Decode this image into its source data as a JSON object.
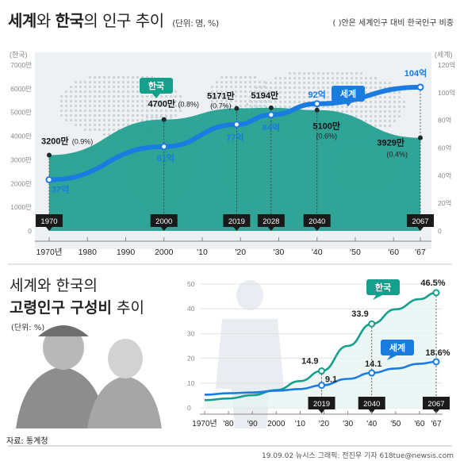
{
  "header": {
    "title_a": "세계",
    "title_b": "와 ",
    "title_c": "한국",
    "title_d": "의 인구 추이",
    "unit": "(단위: 명, %)",
    "note": "( )안은 세계인구 대비 한국인구 비중"
  },
  "bottom": {
    "title_line1": "세계와 한국의",
    "title_line2_bold": "고령인구 구성비",
    "title_line2_rest": " 추이",
    "unit": "(단위: %)"
  },
  "footer": {
    "source": "자료: 통계청",
    "credit": "19.09.02  뉴시스 그래픽: 전진우 기자  618tue@newsis.com"
  },
  "colors": {
    "world": "#1a7be0",
    "korea": "#14a08c",
    "korea_fill": "#1f9e8e",
    "map": "#cdd4da"
  },
  "chart_data": [
    {
      "type": "line",
      "name": "population",
      "left_axis_label": "(한국)",
      "right_axis_label": "(세계)",
      "x_ticks": [
        "1970년",
        "1980",
        "1990",
        "2000",
        "'10",
        "'20",
        "'30",
        "'40",
        "'50",
        "'60",
        "'67"
      ],
      "x_tick_values": [
        1970,
        1980,
        1990,
        2000,
        2010,
        2020,
        2030,
        2040,
        2050,
        2060,
        2067
      ],
      "xlim": [
        1970,
        2067
      ],
      "left_ticks": [
        "0",
        "1000만",
        "2000만",
        "3000만",
        "4000만",
        "5000만",
        "6000만",
        "7000만"
      ],
      "left_tick_values": [
        0,
        1000,
        2000,
        3000,
        4000,
        5000,
        6000,
        7000
      ],
      "left_ylim": [
        0,
        7000
      ],
      "right_ticks": [
        "0",
        "20억",
        "40억",
        "60억",
        "80억",
        "100억",
        "120억"
      ],
      "right_tick_values": [
        0,
        20,
        40,
        60,
        80,
        100,
        120
      ],
      "right_ylim": [
        0,
        120
      ],
      "year_badges": [
        "1970",
        "2000",
        "2019",
        "2028",
        "2040",
        "2067"
      ],
      "year_badge_values": [
        1970,
        2000,
        2019,
        2028,
        2040,
        2067
      ],
      "series": [
        {
          "name": "한국",
          "axis": "left",
          "x": [
            1970,
            2000,
            2019,
            2028,
            2040,
            2067
          ],
          "y": [
            3200,
            4700,
            5171,
            5194,
            5100,
            3929
          ],
          "labels": [
            "3200만",
            "4700만",
            "5171만",
            "5194만",
            "5100만",
            "3929만"
          ],
          "shares": [
            "(0.9%)",
            "(0.8%)",
            "(0.7%)",
            "",
            "(0.6%)",
            "(0.4%)"
          ]
        },
        {
          "name": "세계",
          "axis": "right",
          "x": [
            1970,
            2000,
            2019,
            2028,
            2040,
            2067
          ],
          "y": [
            37,
            61,
            77,
            84,
            92,
            104
          ],
          "labels": [
            "37억",
            "61억",
            "77억",
            "84억",
            "92억",
            "104억"
          ]
        }
      ]
    },
    {
      "type": "line",
      "name": "aging",
      "x_ticks": [
        "1970년",
        "'80",
        "'90",
        "2000",
        "'10",
        "'20",
        "'30",
        "'40",
        "'50",
        "'60",
        "'67"
      ],
      "x_tick_values": [
        1970,
        1980,
        1990,
        2000,
        2010,
        2020,
        2030,
        2040,
        2050,
        2060,
        2067
      ],
      "xlim": [
        1970,
        2067
      ],
      "y_ticks": [
        "0",
        "10",
        "20",
        "30",
        "40",
        "50"
      ],
      "y_tick_values": [
        0,
        10,
        20,
        30,
        40,
        50
      ],
      "ylim": [
        0,
        50
      ],
      "year_badges": [
        "2019",
        "2040",
        "2067"
      ],
      "year_badge_values": [
        2019,
        2040,
        2067
      ],
      "series": [
        {
          "name": "한국",
          "x": [
            1970,
            1980,
            1990,
            2000,
            2010,
            2019,
            2030,
            2040,
            2050,
            2060,
            2067
          ],
          "y": [
            3.1,
            3.8,
            5.1,
            7.2,
            10.8,
            14.9,
            25.0,
            33.9,
            39.8,
            43.9,
            46.5
          ],
          "marked": [
            2019,
            2040,
            2067
          ],
          "labels": [
            "14.9",
            "33.9",
            "46.5%"
          ]
        },
        {
          "name": "세계",
          "x": [
            1970,
            1980,
            1990,
            2000,
            2010,
            2019,
            2030,
            2040,
            2050,
            2060,
            2067
          ],
          "y": [
            5.3,
            5.9,
            6.2,
            6.9,
            7.6,
            9.1,
            11.7,
            14.1,
            15.9,
            17.8,
            18.6
          ],
          "marked": [
            2019,
            2040,
            2067
          ],
          "labels": [
            "9.1",
            "14.1",
            "18.6%"
          ]
        }
      ]
    }
  ]
}
